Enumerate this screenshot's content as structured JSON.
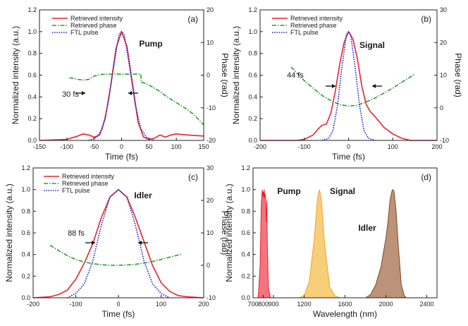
{
  "chart_data": [
    {
      "type": "line",
      "panel": "(a)",
      "label": "Pump",
      "fwhm_label": "30 fs",
      "xlabel": "Time (fs)",
      "ylabel": "Normalized intensity (a.u.)",
      "y2label": "Phase (rad)",
      "xlim": [
        -150,
        150
      ],
      "ylim": [
        0,
        1.2
      ],
      "y2lim": [
        -20,
        20
      ],
      "xticks": [
        -150,
        -100,
        -50,
        0,
        50,
        100,
        150
      ],
      "yticks": [
        0.0,
        0.2,
        0.4,
        0.6,
        0.8,
        1.0,
        1.2
      ],
      "y2ticks": [
        -20,
        -10,
        0,
        10,
        20
      ],
      "legend": [
        "Retrieved intensity",
        "Retrieved phase",
        "FTL pulse"
      ],
      "series": [
        {
          "name": "Retrieved intensity",
          "axis": "left",
          "x": [
            -150,
            -100,
            -80,
            -70,
            -60,
            -50,
            -40,
            -30,
            -20,
            -10,
            0,
            10,
            20,
            30,
            40,
            50,
            60,
            70,
            80,
            90,
            100,
            120,
            150
          ],
          "y": [
            0.0,
            0.01,
            0.04,
            0.06,
            0.05,
            0.03,
            0.05,
            0.2,
            0.5,
            0.85,
            1.0,
            0.86,
            0.52,
            0.17,
            0.03,
            0.01,
            0.02,
            0.05,
            0.03,
            0.05,
            0.06,
            0.05,
            0.04
          ]
        },
        {
          "name": "Retrieved phase",
          "axis": "right",
          "x": [
            -95,
            -80,
            -70,
            -60,
            -50,
            -40,
            -30,
            -20,
            -10,
            0,
            10,
            20,
            30,
            35,
            36,
            40,
            50,
            60,
            70,
            80,
            90,
            100,
            110,
            120,
            130,
            140,
            150
          ],
          "y": [
            -0.8,
            -1.3,
            -1.5,
            -1.3,
            -0.3,
            0.2,
            0.3,
            0.3,
            0.3,
            0.3,
            0.3,
            0.3,
            0.3,
            0.3,
            -2.3,
            -2.3,
            -3.0,
            -4.0,
            -5.0,
            -6.3,
            -7.4,
            -8.4,
            -9.5,
            -10.5,
            -11.8,
            -13.5,
            -15.2
          ]
        },
        {
          "name": "FTL pulse",
          "axis": "left",
          "x": [
            -60,
            -45,
            -35,
            -25,
            -15,
            -5,
            0,
            5,
            15,
            25,
            35,
            45,
            60
          ],
          "y": [
            0.0,
            0.03,
            0.11,
            0.33,
            0.66,
            0.97,
            1.0,
            0.97,
            0.66,
            0.33,
            0.11,
            0.03,
            0.0
          ]
        }
      ]
    },
    {
      "type": "line",
      "panel": "(b)",
      "label": "Signal",
      "fwhm_label": "44 fs",
      "xlabel": "Time (fs)",
      "ylabel": "Normalized intensity (a.u.)",
      "y2label": "Phase (rad)",
      "xlim": [
        -200,
        200
      ],
      "ylim": [
        0,
        1.2
      ],
      "y2lim": [
        -10,
        30
      ],
      "xticks": [
        -200,
        -100,
        0,
        100,
        200
      ],
      "yticks": [
        0.0,
        0.2,
        0.4,
        0.6,
        0.8,
        1.0,
        1.2
      ],
      "y2ticks": [
        -10,
        0,
        10,
        20,
        30
      ],
      "legend": [
        "Retrieved intensity",
        "Retrieved phase",
        "FTL pulse"
      ],
      "series": [
        {
          "name": "Retrieved intensity",
          "axis": "left",
          "x": [
            -200,
            -120,
            -100,
            -80,
            -70,
            -60,
            -50,
            -40,
            -30,
            -20,
            -10,
            0,
            10,
            20,
            30,
            40,
            50,
            60,
            70,
            80,
            100,
            120,
            140,
            200
          ],
          "y": [
            0.0,
            0.0,
            0.01,
            0.05,
            0.1,
            0.14,
            0.15,
            0.25,
            0.45,
            0.7,
            0.9,
            1.0,
            0.93,
            0.75,
            0.5,
            0.33,
            0.26,
            0.22,
            0.17,
            0.12,
            0.06,
            0.02,
            0.0,
            0.0
          ]
        },
        {
          "name": "Retrieved phase",
          "axis": "right",
          "x": [
            -130,
            -100,
            -80,
            -60,
            -40,
            -20,
            0,
            20,
            40,
            60,
            80,
            100,
            120,
            150
          ],
          "y": [
            12.5,
            8.3,
            6.0,
            3.8,
            2.2,
            1.0,
            0.5,
            0.8,
            1.8,
            3.0,
            4.5,
            6.0,
            7.8,
            10.3
          ]
        },
        {
          "name": "FTL pulse",
          "axis": "left",
          "x": [
            -60,
            -45,
            -35,
            -25,
            -15,
            -5,
            0,
            5,
            15,
            25,
            35,
            45,
            60
          ],
          "y": [
            0.0,
            0.02,
            0.09,
            0.32,
            0.67,
            0.97,
            1.0,
            0.97,
            0.67,
            0.32,
            0.09,
            0.02,
            0.0
          ]
        }
      ]
    },
    {
      "type": "line",
      "panel": "(c)",
      "label": "Idler",
      "fwhm_label": "88 fs",
      "xlabel": "Time (fs)",
      "ylabel": "Normalized intensity (a.u.)",
      "y2label": "Phase (rad)",
      "xlim": [
        -200,
        200
      ],
      "ylim": [
        0,
        1.2
      ],
      "y2lim": [
        -10,
        30
      ],
      "xticks": [
        -200,
        -100,
        0,
        100,
        200
      ],
      "yticks": [
        0.0,
        0.2,
        0.4,
        0.6,
        0.8,
        1.0,
        1.2
      ],
      "y2ticks": [
        -10,
        0,
        10,
        20,
        30
      ],
      "legend": [
        "Retrieved intensity",
        "Retrieved phase",
        "FTL pulse"
      ],
      "series": [
        {
          "name": "Retrieved intensity",
          "axis": "left",
          "x": [
            -200,
            -160,
            -140,
            -120,
            -100,
            -80,
            -60,
            -40,
            -20,
            0,
            20,
            40,
            60,
            80,
            100,
            120,
            140,
            160,
            200
          ],
          "y": [
            0.0,
            0.01,
            0.03,
            0.07,
            0.17,
            0.32,
            0.5,
            0.74,
            0.93,
            1.0,
            0.93,
            0.74,
            0.52,
            0.3,
            0.14,
            0.06,
            0.02,
            0.01,
            0.0
          ]
        },
        {
          "name": "Retrieved phase",
          "axis": "right",
          "x": [
            -160,
            -140,
            -120,
            -100,
            -80,
            -60,
            -40,
            -20,
            0,
            20,
            40,
            60,
            80,
            100,
            120,
            150
          ],
          "y": [
            6.2,
            4.5,
            3.0,
            1.8,
            1.0,
            0.5,
            0.2,
            0.0,
            0.0,
            0.1,
            0.3,
            0.7,
            1.2,
            1.8,
            2.5,
            3.5
          ]
        },
        {
          "name": "FTL pulse",
          "axis": "left",
          "x": [
            -120,
            -100,
            -80,
            -60,
            -40,
            -20,
            0,
            20,
            40,
            60,
            80,
            100,
            120
          ],
          "y": [
            0.0,
            0.04,
            0.13,
            0.34,
            0.67,
            0.93,
            1.0,
            0.93,
            0.67,
            0.34,
            0.13,
            0.04,
            0.0
          ]
        }
      ]
    },
    {
      "type": "area",
      "panel": "(d)",
      "xlabel": "Wavelength (nm)",
      "ylabel": "Normalized intensity (a.u.)",
      "xlim": [
        700,
        2500
      ],
      "ylim": [
        0,
        1.2
      ],
      "xticks": [
        700,
        800,
        900,
        1200,
        1600,
        2000,
        2400
      ],
      "yticks": [
        0.0,
        0.2,
        0.4,
        0.6,
        0.8,
        1.0,
        1.2
      ],
      "series": [
        {
          "name": "Pump",
          "color": "#e8232f",
          "fill": "#f26571",
          "x": [
            750,
            770,
            780,
            785,
            790,
            795,
            800,
            805,
            810,
            815,
            820,
            825,
            830,
            835,
            840,
            850,
            870
          ],
          "y": [
            0.0,
            0.3,
            0.85,
            0.93,
            1.0,
            0.94,
            0.98,
            0.92,
            1.0,
            0.92,
            0.96,
            0.85,
            0.7,
            0.9,
            0.5,
            0.1,
            0.0
          ]
        },
        {
          "name": "Signal",
          "color": "#f2a51a",
          "fill": "#f7c96b",
          "x": [
            1150,
            1200,
            1250,
            1300,
            1330,
            1350,
            1370,
            1400,
            1450,
            1500,
            1550
          ],
          "y": [
            0.0,
            0.02,
            0.15,
            0.55,
            0.92,
            1.0,
            0.9,
            0.5,
            0.1,
            0.02,
            0.0
          ]
        },
        {
          "name": "Idler",
          "color": "#7a4a22",
          "fill": "#b5876a",
          "x": [
            1800,
            1850,
            1900,
            1950,
            2000,
            2020,
            2040,
            2060,
            2070,
            2080,
            2100,
            2120,
            2150,
            2180,
            2200
          ],
          "y": [
            0.0,
            0.03,
            0.12,
            0.28,
            0.55,
            0.7,
            0.9,
            0.99,
            1.0,
            0.98,
            0.8,
            0.5,
            0.12,
            0.02,
            0.0
          ]
        }
      ]
    }
  ]
}
